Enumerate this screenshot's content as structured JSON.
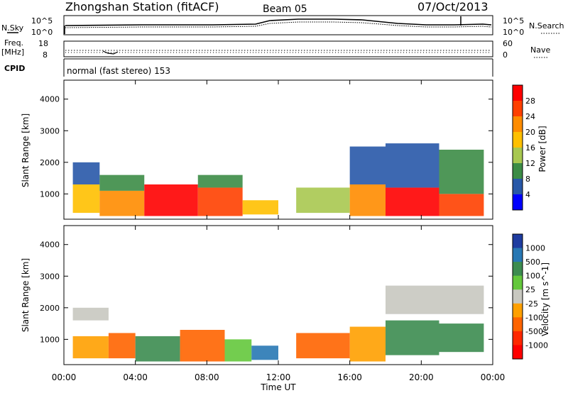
{
  "header": {
    "station": "Zhongshan Station (fitACF)",
    "beam": "Beam 05",
    "date": "07/Oct/2013"
  },
  "top_panels": {
    "noise": {
      "left_label": "N.Sky",
      "right_label": "N.Search",
      "left_ticks": [
        "10^5",
        "10^0"
      ],
      "right_ticks": [
        "10^5",
        "10^0"
      ]
    },
    "freq": {
      "left_label_1": "Freq.",
      "left_label_2": "[MHz]",
      "right_label": "Nave",
      "left_ticks": [
        "18",
        "8"
      ],
      "right_ticks": [
        "60",
        "0"
      ]
    },
    "cpid_label": "CPID",
    "cpid_text": "normal (fast stereo) 153"
  },
  "chart_data": [
    {
      "type": "heatmap",
      "name": "power",
      "ylabel": "Slant Range [km]",
      "ylim": [
        200,
        4600
      ],
      "yticks": [
        1000,
        2000,
        3000,
        4000
      ],
      "xlim": [
        0,
        24
      ],
      "colorbar": {
        "label": "Power [dB]",
        "ticks": [
          "28",
          "24",
          "20",
          "16",
          "12",
          "8",
          "4"
        ],
        "colors": [
          "#ff0000",
          "#ff4000",
          "#ff8c00",
          "#ffc000",
          "#a8c850",
          "#3c8c46",
          "#2858a8",
          "#0000ff"
        ]
      },
      "cells": [
        {
          "x0": 0.5,
          "x1": 2.0,
          "y0": 400,
          "y1": 1300,
          "level": 3
        },
        {
          "x0": 0.5,
          "x1": 2.0,
          "y0": 1300,
          "y1": 2000,
          "level": 6
        },
        {
          "x0": 2.0,
          "x1": 4.5,
          "y0": 300,
          "y1": 1100,
          "level": 2
        },
        {
          "x0": 2.0,
          "x1": 4.5,
          "y0": 1100,
          "y1": 1600,
          "level": 5
        },
        {
          "x0": 4.5,
          "x1": 7.5,
          "y0": 300,
          "y1": 1300,
          "level": 0
        },
        {
          "x0": 7.5,
          "x1": 10.0,
          "y0": 300,
          "y1": 1200,
          "level": 1
        },
        {
          "x0": 7.5,
          "x1": 10.0,
          "y0": 1200,
          "y1": 1600,
          "level": 5
        },
        {
          "x0": 10.0,
          "x1": 12.0,
          "y0": 350,
          "y1": 800,
          "level": 3
        },
        {
          "x0": 13.0,
          "x1": 16.0,
          "y0": 400,
          "y1": 1200,
          "level": 4
        },
        {
          "x0": 16.0,
          "x1": 18.0,
          "y0": 300,
          "y1": 1300,
          "level": 2
        },
        {
          "x0": 16.0,
          "x1": 18.0,
          "y0": 1300,
          "y1": 2500,
          "level": 6
        },
        {
          "x0": 18.0,
          "x1": 21.0,
          "y0": 300,
          "y1": 1200,
          "level": 0
        },
        {
          "x0": 18.0,
          "x1": 21.0,
          "y0": 1200,
          "y1": 2600,
          "level": 6
        },
        {
          "x0": 21.0,
          "x1": 23.5,
          "y0": 300,
          "y1": 1000,
          "level": 1
        },
        {
          "x0": 21.0,
          "x1": 23.5,
          "y0": 1000,
          "y1": 2400,
          "level": 5
        }
      ]
    },
    {
      "type": "heatmap",
      "name": "velocity",
      "ylabel": "Slant Range [km]",
      "ylim": [
        200,
        4600
      ],
      "yticks": [
        1000,
        2000,
        3000,
        4000
      ],
      "xlim": [
        0,
        24
      ],
      "xticks": [
        "00:00",
        "04:00",
        "08:00",
        "12:00",
        "16:00",
        "20:00",
        "00:00"
      ],
      "xlabel": "Time UT",
      "colorbar": {
        "label": "Velocity [m s^-1]",
        "ticks": [
          "1000",
          "500",
          "100",
          "25",
          "-25",
          "-100",
          "-500",
          "-1000"
        ],
        "colors": [
          "#1e3ca0",
          "#2878b4",
          "#3c8c50",
          "#64c83c",
          "#c8c8c0",
          "#ffa000",
          "#ff6400",
          "#ff2800",
          "#ff0000"
        ]
      },
      "cells": [
        {
          "x0": 0.5,
          "x1": 2.5,
          "y0": 400,
          "y1": 1100,
          "level": 5
        },
        {
          "x0": 0.5,
          "x1": 2.5,
          "y0": 1600,
          "y1": 2000,
          "level": 4
        },
        {
          "x0": 2.5,
          "x1": 4.0,
          "y0": 400,
          "y1": 1200,
          "level": 6
        },
        {
          "x0": 4.0,
          "x1": 6.5,
          "y0": 300,
          "y1": 1100,
          "level": 2
        },
        {
          "x0": 6.5,
          "x1": 9.0,
          "y0": 300,
          "y1": 1300,
          "level": 6
        },
        {
          "x0": 9.0,
          "x1": 10.5,
          "y0": 300,
          "y1": 1000,
          "level": 3
        },
        {
          "x0": 10.5,
          "x1": 12.0,
          "y0": 350,
          "y1": 800,
          "level": 1
        },
        {
          "x0": 13.0,
          "x1": 16.0,
          "y0": 400,
          "y1": 1200,
          "level": 6
        },
        {
          "x0": 16.0,
          "x1": 18.0,
          "y0": 300,
          "y1": 1400,
          "level": 5
        },
        {
          "x0": 18.0,
          "x1": 21.0,
          "y0": 500,
          "y1": 1600,
          "level": 2
        },
        {
          "x0": 18.0,
          "x1": 23.5,
          "y0": 1800,
          "y1": 2700,
          "level": 4
        },
        {
          "x0": 21.0,
          "x1": 23.5,
          "y0": 600,
          "y1": 1500,
          "level": 2
        }
      ]
    }
  ]
}
